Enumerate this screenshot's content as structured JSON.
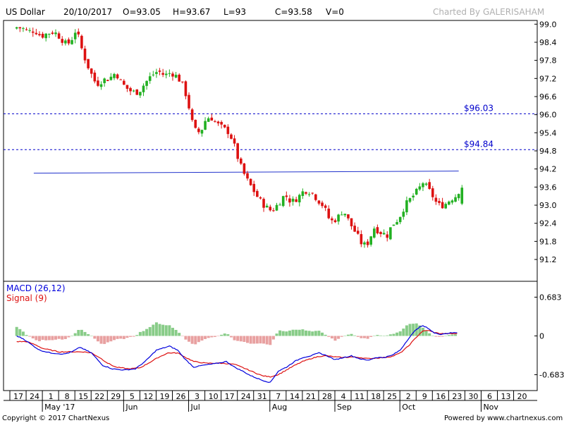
{
  "colors": {
    "up": "#22b022",
    "down": "#dd1111",
    "macd": "#0000dd",
    "signal": "#dd1111",
    "hist_pos": "#88cc88",
    "hist_neg": "#e8a0a0",
    "trend": "#2233cc",
    "level_line": "#0000cc"
  },
  "header": {
    "symbol": "US Dollar",
    "date": "20/10/2017",
    "open": "O=93.05",
    "high": "H=93.67",
    "low": "L=93",
    "close": "C=93.58",
    "volume": "V=0",
    "credit": "Charted By GALERISAHAM"
  },
  "footer": {
    "copyright": "Copyright © 2017 ChartNexus",
    "powered": "Powered by www.chartnexus.com"
  },
  "chart_data": [
    {
      "type": "candlestick",
      "ylim": [
        90.5,
        99.1
      ],
      "y_ticks": [
        "99.0",
        "98.4",
        "97.8",
        "97.2",
        "96.6",
        "96.0",
        "95.4",
        "94.8",
        "94.2",
        "93.6",
        "93.0",
        "92.4",
        "91.8",
        "91.2"
      ],
      "y_tick_values": [
        99.0,
        98.4,
        97.8,
        97.2,
        96.6,
        96.0,
        95.4,
        94.8,
        94.2,
        93.6,
        93.0,
        92.4,
        91.8,
        91.2
      ],
      "x_day_labels": [
        "17",
        "24",
        "1",
        "8",
        "15",
        "22",
        "29",
        "5",
        "12",
        "19",
        "26",
        "3",
        "10",
        "17",
        "24",
        "31",
        "7",
        "14",
        "21",
        "28",
        "4",
        "11",
        "18",
        "25",
        "2",
        "9",
        "16",
        "23",
        "30",
        "6",
        "13",
        "20"
      ],
      "x_month_labels": [
        {
          "label": "May '17",
          "tick_index": 2
        },
        {
          "label": "Jun",
          "tick_index": 7
        },
        {
          "label": "Jul",
          "tick_index": 11
        },
        {
          "label": "Aug",
          "tick_index": 16
        },
        {
          "label": "Sep",
          "tick_index": 20
        },
        {
          "label": "Oct",
          "tick_index": 24
        },
        {
          "label": "Nov",
          "tick_index": 29
        }
      ],
      "levels": [
        {
          "value": 96.03,
          "label": "$96.03"
        },
        {
          "value": 94.84,
          "label": "$94.84"
        }
      ],
      "trendline": {
        "from": [
          0.95,
          94.06
        ],
        "to": [
          27.1,
          94.13
        ]
      },
      "close_keypoints": [
        [
          -0.1,
          98.9
        ],
        [
          0.3,
          98.85
        ],
        [
          0.6,
          98.75
        ],
        [
          1.0,
          98.8
        ],
        [
          1.4,
          98.6
        ],
        [
          1.8,
          98.7
        ],
        [
          2.2,
          98.75
        ],
        [
          2.5,
          98.6
        ],
        [
          3.0,
          98.3
        ],
        [
          3.4,
          98.6
        ],
        [
          3.55,
          98.85
        ],
        [
          4.0,
          98.0
        ],
        [
          4.4,
          97.45
        ],
        [
          4.8,
          97.0
        ],
        [
          5.2,
          97.15
        ],
        [
          5.6,
          97.2
        ],
        [
          6.0,
          97.4
        ],
        [
          6.3,
          97.1
        ],
        [
          6.6,
          96.9
        ],
        [
          7.0,
          96.75
        ],
        [
          7.4,
          96.75
        ],
        [
          7.8,
          97.05
        ],
        [
          8.2,
          97.3
        ],
        [
          8.6,
          97.45
        ],
        [
          9.0,
          97.3
        ],
        [
          9.4,
          97.4
        ],
        [
          9.8,
          97.25
        ],
        [
          10.2,
          96.9
        ],
        [
          10.5,
          96.25
        ],
        [
          10.8,
          95.5
        ],
        [
          11.2,
          95.4
        ],
        [
          11.5,
          95.8
        ],
        [
          11.8,
          95.95
        ],
        [
          12.2,
          95.7
        ],
        [
          12.6,
          95.55
        ],
        [
          13.0,
          95.4
        ],
        [
          13.3,
          94.95
        ],
        [
          13.6,
          94.4
        ],
        [
          14.0,
          93.9
        ],
        [
          14.4,
          93.55
        ],
        [
          14.8,
          93.2
        ],
        [
          15.2,
          92.95
        ],
        [
          15.6,
          92.8
        ],
        [
          16.0,
          93.05
        ],
        [
          16.4,
          93.35
        ],
        [
          16.8,
          93.1
        ],
        [
          17.2,
          93.25
        ],
        [
          17.6,
          93.5
        ],
        [
          18.0,
          93.45
        ],
        [
          18.4,
          93.2
        ],
        [
          18.8,
          92.95
        ],
        [
          19.2,
          92.45
        ],
        [
          19.6,
          92.55
        ],
        [
          20.0,
          92.85
        ],
        [
          20.4,
          92.4
        ],
        [
          20.8,
          92.05
        ],
        [
          21.2,
          91.65
        ],
        [
          21.5,
          91.75
        ],
        [
          21.9,
          92.25
        ],
        [
          22.3,
          92.1
        ],
        [
          22.7,
          92.0
        ],
        [
          23.0,
          92.35
        ],
        [
          23.4,
          92.55
        ],
        [
          23.8,
          93.0
        ],
        [
          24.2,
          93.25
        ],
        [
          24.6,
          93.5
        ],
        [
          24.9,
          93.75
        ],
        [
          25.2,
          93.55
        ],
        [
          25.5,
          93.3
        ],
        [
          25.8,
          93.0
        ],
        [
          26.2,
          93.0
        ],
        [
          26.6,
          93.2
        ],
        [
          26.9,
          93.3
        ],
        [
          27.2,
          93.55
        ]
      ],
      "last_bar": {
        "open": 93.05,
        "high": 93.67,
        "low": 93.0,
        "close": 93.58
      }
    },
    {
      "type": "macd",
      "title": "MACD (26,12)",
      "signal_label": "Signal (9)",
      "ylim": [
        -0.95,
        0.95
      ],
      "y_ticks": [
        "0.683",
        "0",
        "-0.683"
      ],
      "y_tick_values": [
        0.683,
        0,
        -0.683
      ],
      "macd_keypoints": [
        [
          -0.1,
          0.0
        ],
        [
          0.3,
          -0.05
        ],
        [
          0.8,
          -0.15
        ],
        [
          1.3,
          -0.25
        ],
        [
          2.0,
          -0.3
        ],
        [
          2.8,
          -0.32
        ],
        [
          3.3,
          -0.28
        ],
        [
          3.8,
          -0.2
        ],
        [
          4.5,
          -0.3
        ],
        [
          5.2,
          -0.52
        ],
        [
          5.8,
          -0.58
        ],
        [
          6.5,
          -0.6
        ],
        [
          7.2,
          -0.58
        ],
        [
          7.8,
          -0.45
        ],
        [
          8.5,
          -0.25
        ],
        [
          9.3,
          -0.18
        ],
        [
          9.8,
          -0.25
        ],
        [
          10.3,
          -0.42
        ],
        [
          10.8,
          -0.55
        ],
        [
          11.3,
          -0.52
        ],
        [
          11.8,
          -0.5
        ],
        [
          12.3,
          -0.48
        ],
        [
          12.8,
          -0.45
        ],
        [
          13.3,
          -0.55
        ],
        [
          13.8,
          -0.62
        ],
        [
          14.3,
          -0.7
        ],
        [
          15.0,
          -0.78
        ],
        [
          15.5,
          -0.82
        ],
        [
          16.0,
          -0.62
        ],
        [
          16.5,
          -0.55
        ],
        [
          17.0,
          -0.45
        ],
        [
          17.5,
          -0.38
        ],
        [
          18.0,
          -0.35
        ],
        [
          18.5,
          -0.3
        ],
        [
          19.0,
          -0.35
        ],
        [
          19.5,
          -0.42
        ],
        [
          20.0,
          -0.38
        ],
        [
          20.5,
          -0.35
        ],
        [
          21.0,
          -0.4
        ],
        [
          21.5,
          -0.43
        ],
        [
          22.0,
          -0.38
        ],
        [
          22.5,
          -0.38
        ],
        [
          23.0,
          -0.34
        ],
        [
          23.5,
          -0.25
        ],
        [
          24.0,
          -0.05
        ],
        [
          24.5,
          0.12
        ],
        [
          24.85,
          0.18
        ],
        [
          25.2,
          0.14
        ],
        [
          25.6,
          0.05
        ],
        [
          26.0,
          0.03
        ],
        [
          26.5,
          0.05
        ],
        [
          27.0,
          0.06
        ]
      ],
      "signal_keypoints": [
        [
          -0.1,
          -0.1
        ],
        [
          0.5,
          -0.1
        ],
        [
          1.0,
          -0.15
        ],
        [
          1.5,
          -0.22
        ],
        [
          2.5,
          -0.28
        ],
        [
          3.3,
          -0.28
        ],
        [
          4.0,
          -0.28
        ],
        [
          4.5,
          -0.3
        ],
        [
          5.0,
          -0.38
        ],
        [
          5.5,
          -0.48
        ],
        [
          6.0,
          -0.55
        ],
        [
          6.8,
          -0.58
        ],
        [
          7.5,
          -0.56
        ],
        [
          8.0,
          -0.48
        ],
        [
          8.6,
          -0.38
        ],
        [
          9.2,
          -0.3
        ],
        [
          9.8,
          -0.3
        ],
        [
          10.3,
          -0.38
        ],
        [
          10.8,
          -0.45
        ],
        [
          11.5,
          -0.48
        ],
        [
          12.5,
          -0.48
        ],
        [
          13.3,
          -0.5
        ],
        [
          14.0,
          -0.58
        ],
        [
          14.5,
          -0.64
        ],
        [
          15.0,
          -0.7
        ],
        [
          15.5,
          -0.72
        ],
        [
          16.0,
          -0.68
        ],
        [
          16.5,
          -0.6
        ],
        [
          17.0,
          -0.52
        ],
        [
          17.5,
          -0.45
        ],
        [
          18.0,
          -0.4
        ],
        [
          18.5,
          -0.36
        ],
        [
          19.0,
          -0.35
        ],
        [
          19.5,
          -0.37
        ],
        [
          20.0,
          -0.38
        ],
        [
          20.5,
          -0.37
        ],
        [
          21.0,
          -0.38
        ],
        [
          21.5,
          -0.4
        ],
        [
          22.0,
          -0.39
        ],
        [
          22.5,
          -0.38
        ],
        [
          23.0,
          -0.36
        ],
        [
          23.5,
          -0.3
        ],
        [
          24.0,
          -0.18
        ],
        [
          24.5,
          -0.02
        ],
        [
          24.85,
          0.08
        ],
        [
          25.2,
          0.1
        ],
        [
          25.6,
          0.06
        ],
        [
          26.0,
          0.04
        ],
        [
          26.5,
          0.04
        ],
        [
          27.0,
          0.04
        ]
      ]
    }
  ]
}
